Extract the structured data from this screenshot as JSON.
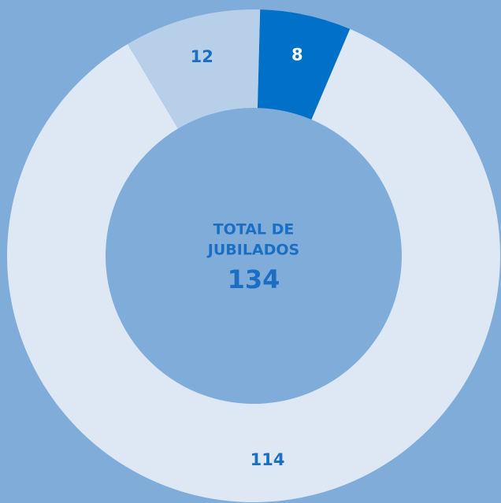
{
  "chart_data": {
    "type": "donut",
    "categories": [
      null,
      null,
      null
    ],
    "values": [
      8,
      114,
      12
    ],
    "colors": [
      "#0070c9",
      "#dde8f4",
      "#b8cfe9"
    ],
    "label_colors": [
      "#ffffff",
      "#1a6fc4",
      "#1a6fc4"
    ],
    "center_label": [
      "TOTAL DE",
      "JUBILADOS"
    ],
    "total": 134
  }
}
